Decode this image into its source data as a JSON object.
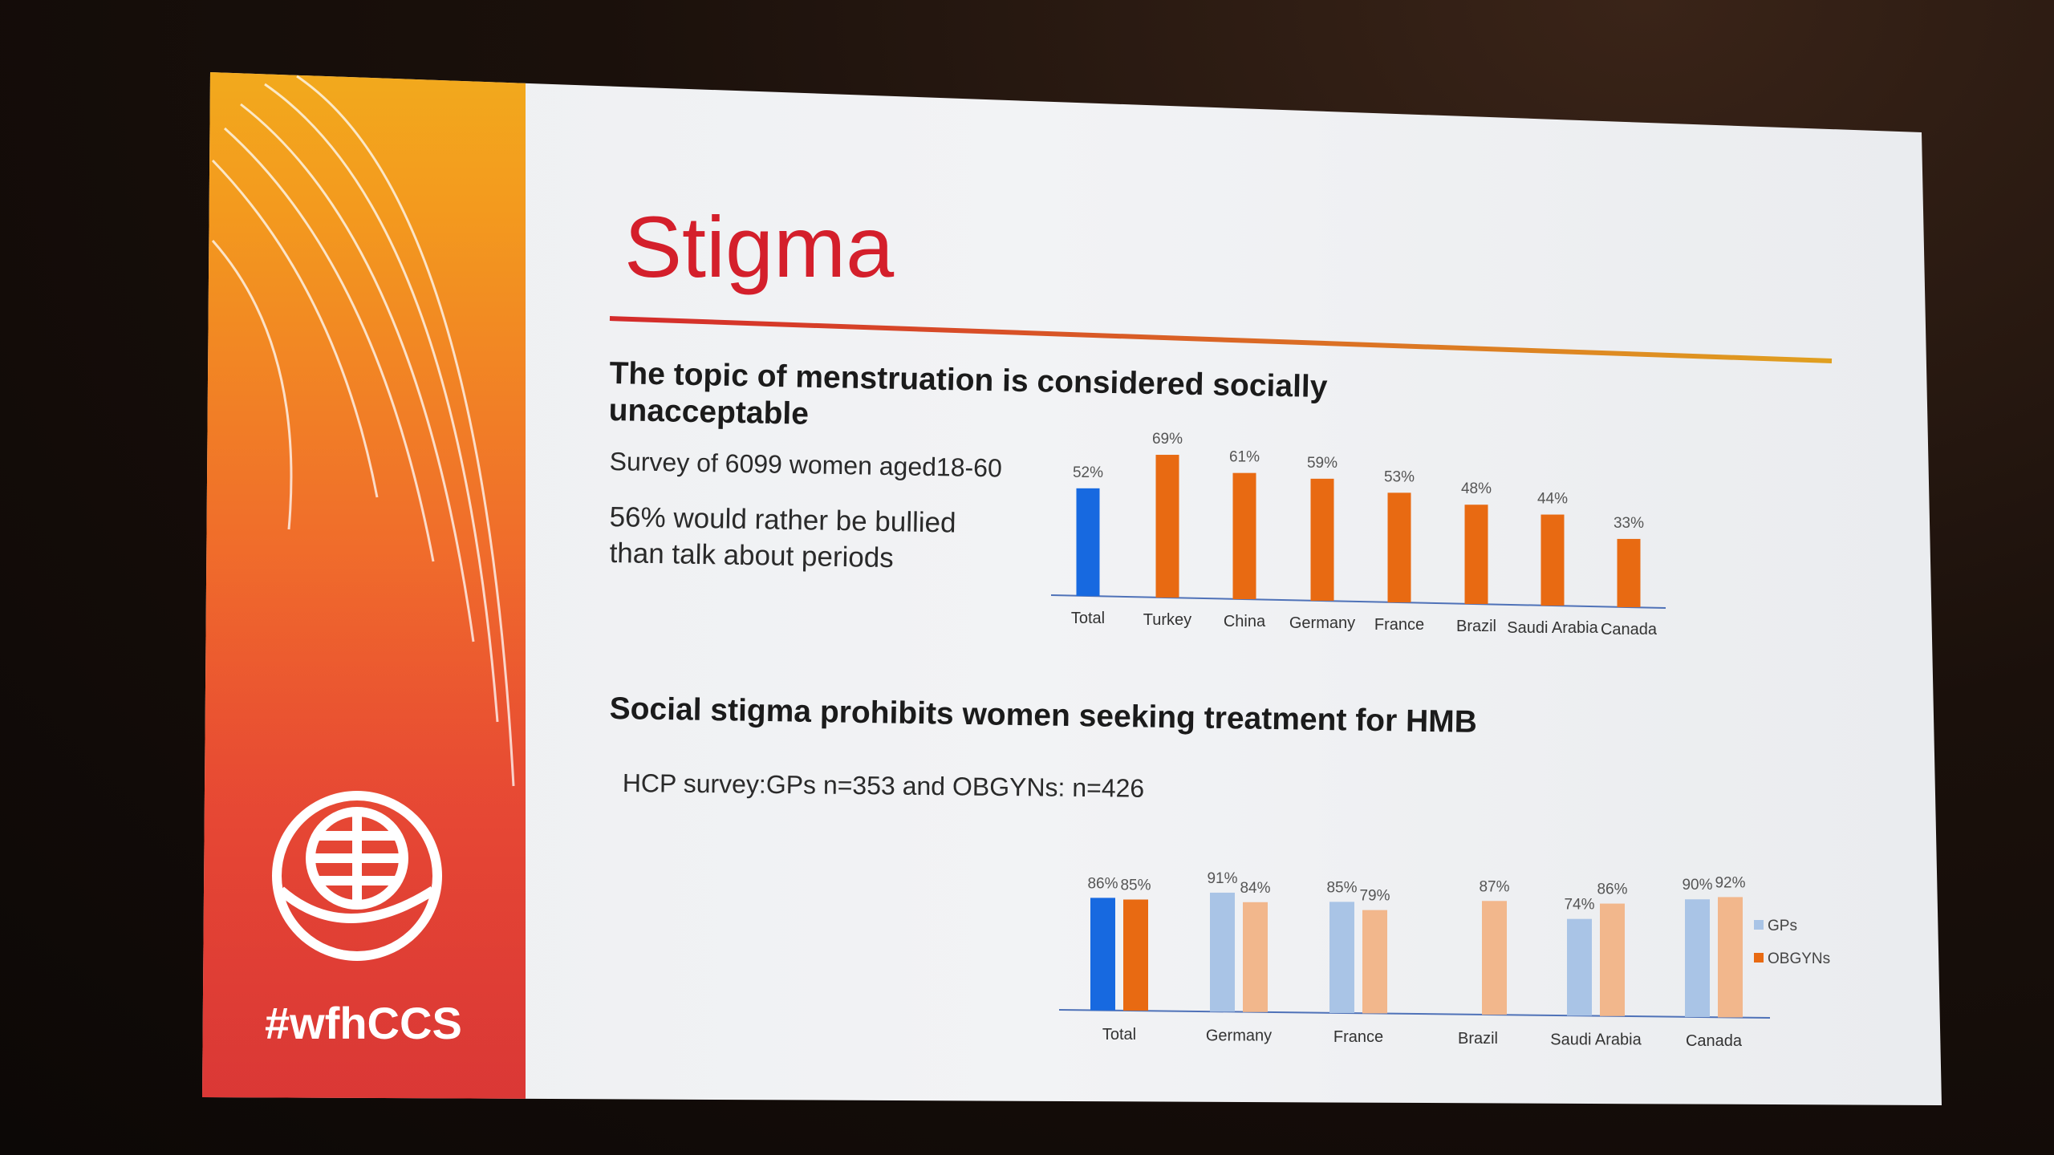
{
  "slide": {
    "title": "Stigma",
    "heading1": "The topic of menstruation is considered socially unacceptable",
    "heading1_line1": "The topic of menstruation is considered socially",
    "heading1_line2": "unacceptable",
    "survey_note": "Survey of 6099 women aged18-60",
    "stat_line1": "56% would rather be bullied",
    "stat_line2": "than talk about periods",
    "heading2": "Social stigma prohibits women seeking treatment for HMB",
    "hcp_note": "HCP survey:GPs n=353  and OBGYNs: n=426",
    "hashtag": "#wfhCCS",
    "logo_icon": "globe-hand-icon"
  },
  "colors": {
    "title_red": "#d41f2b",
    "total_blue": "#1769e0",
    "orange": "#e86a12",
    "light_blue": "#a9c4e6",
    "light_orange": "#f2b78c",
    "rule_start": "#d42a2a",
    "rule_end": "#e0a020"
  },
  "chart_data": [
    {
      "type": "bar",
      "categories": [
        "Total",
        "Turkey",
        "China",
        "Germany",
        "France",
        "Brazil",
        "Saudi Arabia",
        "Canada"
      ],
      "values": [
        52,
        69,
        61,
        59,
        53,
        48,
        44,
        33
      ],
      "data_labels": [
        "52%",
        "69%",
        "61%",
        "59%",
        "53%",
        "48%",
        "44%",
        "33%"
      ],
      "ylim": [
        0,
        75
      ],
      "grid": false
    },
    {
      "type": "bar",
      "categories": [
        "Total",
        "Germany",
        "France",
        "Brazil",
        "Saudi Arabia",
        "Canada"
      ],
      "series": [
        {
          "name": "GPs",
          "values": [
            86,
            91,
            85,
            null,
            74,
            90
          ],
          "data_labels": [
            "86%",
            "91%",
            "85%",
            "",
            "74%",
            "90%"
          ]
        },
        {
          "name": "OBGYNs",
          "values": [
            85,
            84,
            79,
            87,
            86,
            92
          ],
          "data_labels": [
            "85%",
            "84%",
            "79%",
            "87%",
            "86%",
            "92%"
          ]
        }
      ],
      "ylim": [
        0,
        100
      ],
      "legend": "right",
      "grid": false
    }
  ]
}
